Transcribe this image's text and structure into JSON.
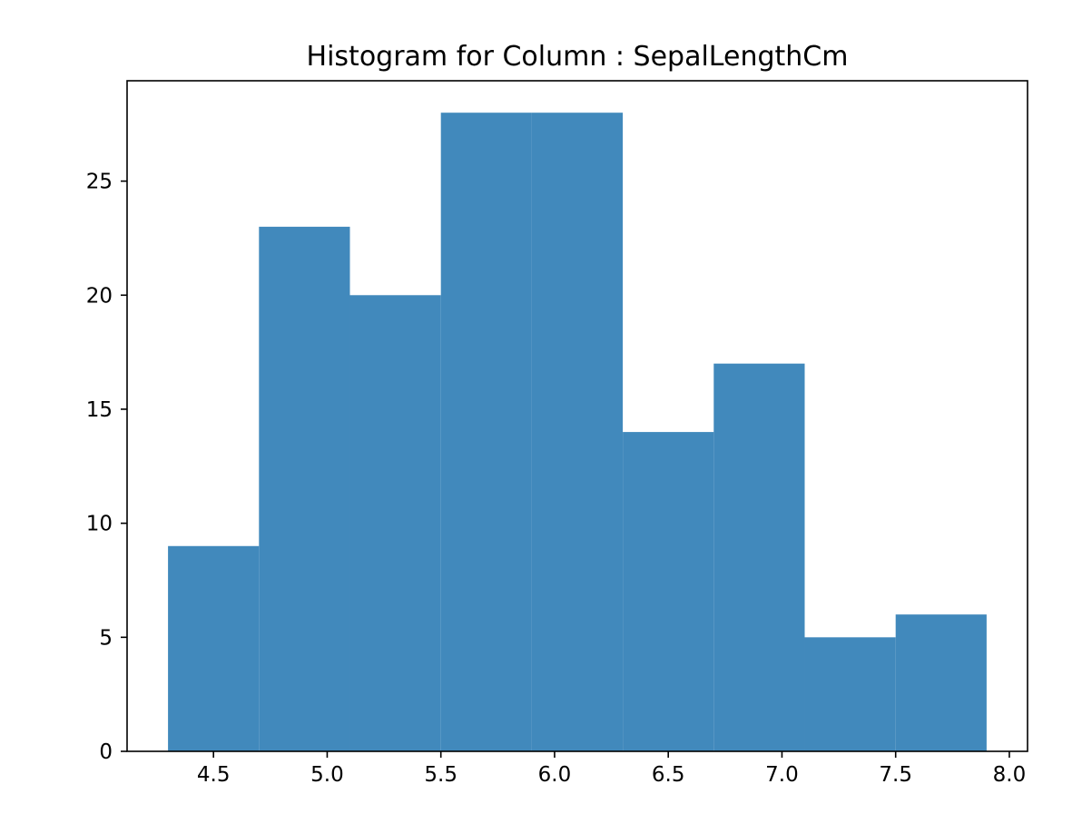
{
  "chart_data": {
    "type": "bar",
    "title": "Histogram for Column : SepalLengthCm",
    "xlabel": "",
    "ylabel": "",
    "bins": [
      {
        "x0": 4.3,
        "x1": 4.7,
        "value": 9
      },
      {
        "x0": 4.7,
        "x1": 5.1,
        "value": 23
      },
      {
        "x0": 5.1,
        "x1": 5.5,
        "value": 20
      },
      {
        "x0": 5.5,
        "x1": 5.9,
        "value": 28
      },
      {
        "x0": 5.9,
        "x1": 6.3,
        "value": 28
      },
      {
        "x0": 6.3,
        "x1": 6.7,
        "value": 14
      },
      {
        "x0": 6.7,
        "x1": 7.1,
        "value": 17
      },
      {
        "x0": 7.1,
        "x1": 7.5,
        "value": 5
      },
      {
        "x0": 7.5,
        "x1": 7.9,
        "value": 6
      }
    ],
    "xlim": [
      4.12,
      8.08
    ],
    "ylim": [
      0,
      29.4
    ],
    "x_ticks": [
      {
        "value": 4.5,
        "label": "4.5"
      },
      {
        "value": 5.0,
        "label": "5.0"
      },
      {
        "value": 5.5,
        "label": "5.5"
      },
      {
        "value": 6.0,
        "label": "6.0"
      },
      {
        "value": 6.5,
        "label": "6.5"
      },
      {
        "value": 7.0,
        "label": "7.0"
      },
      {
        "value": 7.5,
        "label": "7.5"
      },
      {
        "value": 8.0,
        "label": "8.0"
      }
    ],
    "y_ticks": [
      {
        "value": 0,
        "label": "0"
      },
      {
        "value": 5,
        "label": "5"
      },
      {
        "value": 10,
        "label": "10"
      },
      {
        "value": 15,
        "label": "15"
      },
      {
        "value": 20,
        "label": "20"
      },
      {
        "value": 25,
        "label": "25"
      }
    ],
    "bar_color": "#4189bc",
    "grid": false,
    "legend": "none"
  }
}
